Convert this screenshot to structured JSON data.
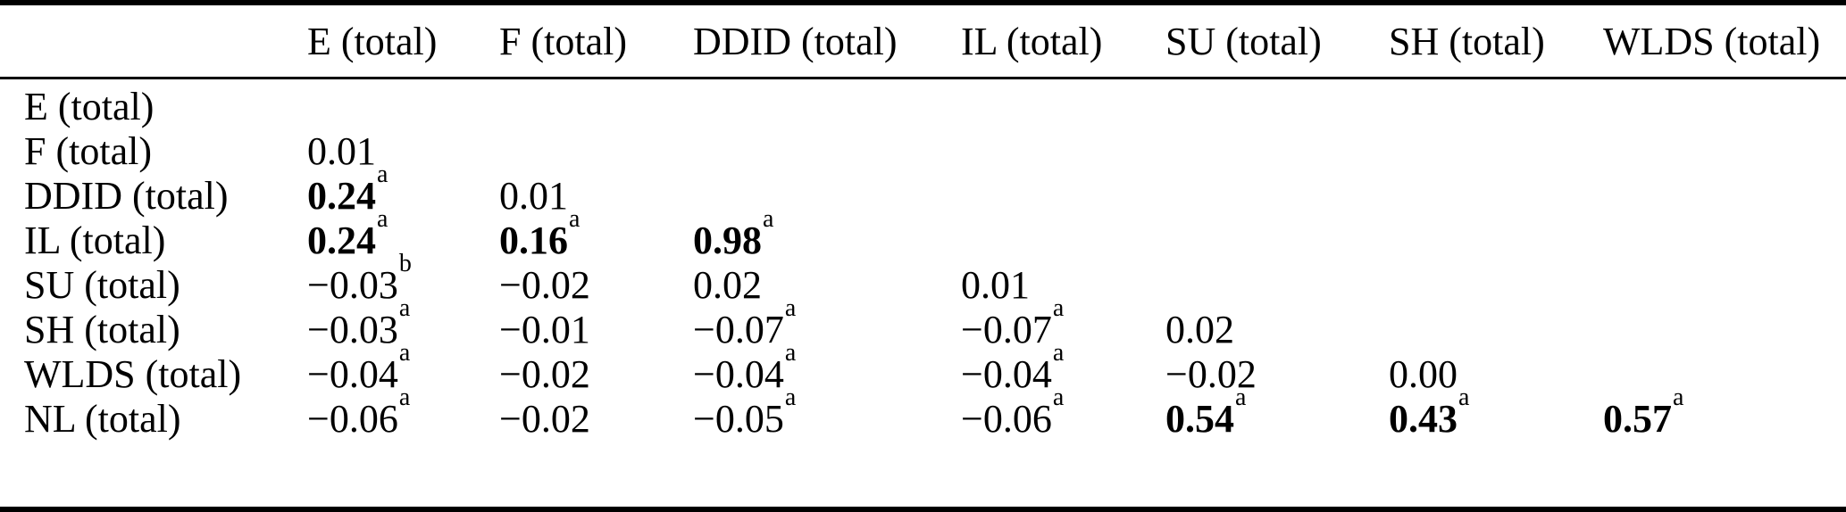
{
  "colors": {
    "text": "#000000",
    "background": "#ffffff",
    "rule": "#000000"
  },
  "table": {
    "columns": [
      "",
      "E (total)",
      "F (total)",
      "DDID (total)",
      "IL (total)",
      "SU (total)",
      "SH (total)",
      "WLDS (total)"
    ],
    "rows": [
      {
        "label": "E (total)",
        "cells": [
          null,
          null,
          null,
          null,
          null,
          null,
          null
        ]
      },
      {
        "label": "F (total)",
        "cells": [
          {
            "value": "0.01",
            "bold": false,
            "sup": ""
          },
          null,
          null,
          null,
          null,
          null,
          null
        ]
      },
      {
        "label": "DDID (total)",
        "cells": [
          {
            "value": "0.24",
            "bold": true,
            "sup": "a"
          },
          {
            "value": "0.01",
            "bold": false,
            "sup": ""
          },
          null,
          null,
          null,
          null,
          null
        ]
      },
      {
        "label": "IL (total)",
        "cells": [
          {
            "value": "0.24",
            "bold": true,
            "sup": "a"
          },
          {
            "value": "0.16",
            "bold": true,
            "sup": "a"
          },
          {
            "value": "0.98",
            "bold": true,
            "sup": "a"
          },
          null,
          null,
          null,
          null
        ]
      },
      {
        "label": "SU (total)",
        "cells": [
          {
            "value": "−0.03",
            "bold": false,
            "sup": "b"
          },
          {
            "value": "−0.02",
            "bold": false,
            "sup": ""
          },
          {
            "value": "0.02",
            "bold": false,
            "sup": ""
          },
          {
            "value": "0.01",
            "bold": false,
            "sup": ""
          },
          null,
          null,
          null
        ]
      },
      {
        "label": "SH (total)",
        "cells": [
          {
            "value": "−0.03",
            "bold": false,
            "sup": "a"
          },
          {
            "value": "−0.01",
            "bold": false,
            "sup": ""
          },
          {
            "value": "−0.07",
            "bold": false,
            "sup": "a"
          },
          {
            "value": "−0.07",
            "bold": false,
            "sup": "a"
          },
          {
            "value": "0.02",
            "bold": false,
            "sup": ""
          },
          null,
          null
        ]
      },
      {
        "label": "WLDS (total)",
        "cells": [
          {
            "value": "−0.04",
            "bold": false,
            "sup": "a"
          },
          {
            "value": "−0.02",
            "bold": false,
            "sup": ""
          },
          {
            "value": "−0.04",
            "bold": false,
            "sup": "a"
          },
          {
            "value": "−0.04",
            "bold": false,
            "sup": "a"
          },
          {
            "value": "−0.02",
            "bold": false,
            "sup": ""
          },
          {
            "value": "0.00",
            "bold": false,
            "sup": ""
          },
          null
        ]
      },
      {
        "label": "NL (total)",
        "cells": [
          {
            "value": "−0.06",
            "bold": false,
            "sup": "a"
          },
          {
            "value": "−0.02",
            "bold": false,
            "sup": ""
          },
          {
            "value": "−0.05",
            "bold": false,
            "sup": "a"
          },
          {
            "value": "−0.06",
            "bold": false,
            "sup": "a"
          },
          {
            "value": "0.54",
            "bold": true,
            "sup": "a"
          },
          {
            "value": "0.43",
            "bold": true,
            "sup": "a"
          },
          {
            "value": "0.57",
            "bold": true,
            "sup": "a"
          }
        ]
      }
    ]
  }
}
